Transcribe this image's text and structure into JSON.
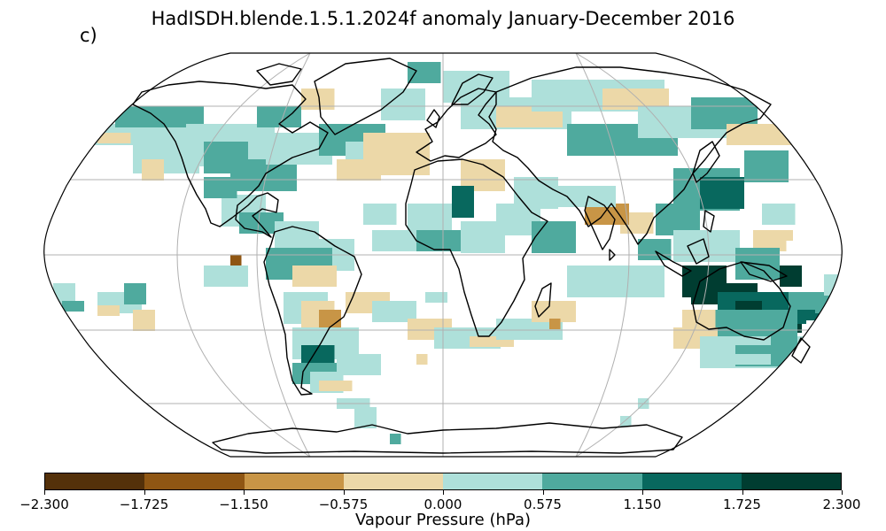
{
  "title": "HadISDH.blende.1.5.1.2024f anomaly January-December 2016",
  "panel_label": "c)",
  "colorbar": {
    "label": "Vapour Pressure (hPa)",
    "ticks": [
      "−2.300",
      "−1.725",
      "−1.150",
      "−0.575",
      "0.000",
      "0.575",
      "1.150",
      "1.725",
      "2.300"
    ],
    "colors": [
      "#54310a",
      "#8f5613",
      "#c89546",
      "#ecd8a8",
      "#aee0da",
      "#4faa9e",
      "#08685e",
      "#003d31"
    ]
  },
  "map": {
    "projection": "Robinson",
    "coastline_color": "#000000",
    "graticule_color": "#b0b0b0"
  }
}
